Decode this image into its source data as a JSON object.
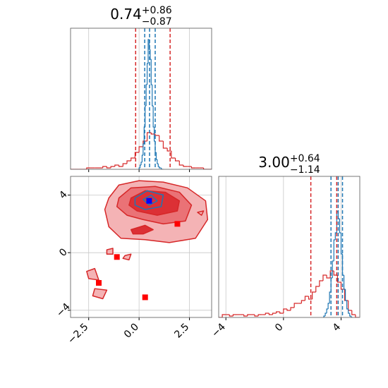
{
  "chart_data": [
    {
      "type": "histogram",
      "title": "0.74",
      "title_sup": "+0.86",
      "title_sub": "−0.87",
      "xlim": [
        -3.4,
        3.6
      ],
      "ylim": [
        0,
        1
      ],
      "xticks": [
        -2.5,
        0,
        2.5
      ],
      "grid": true,
      "series": [
        {
          "color": "#d62728",
          "bins": [
            -3.4,
            -3.2,
            -3.0,
            -2.8,
            -2.6,
            -2.4,
            -2.2,
            -2.0,
            -1.8,
            -1.6,
            -1.4,
            -1.2,
            -1.0,
            -0.8,
            -0.6,
            -0.4,
            -0.2,
            0.0,
            0.2,
            0.4,
            0.6,
            0.8,
            1.0,
            1.2,
            1.4,
            1.6,
            1.8,
            2.0,
            2.2,
            2.4,
            2.6,
            2.8,
            3.0,
            3.2,
            3.4,
            3.6
          ],
          "values": [
            0,
            0,
            0,
            0,
            0.01,
            0.01,
            0.01,
            0.01,
            0.02,
            0.01,
            0.02,
            0.03,
            0.02,
            0.04,
            0.06,
            0.08,
            0.12,
            0.16,
            0.2,
            0.26,
            0.25,
            0.24,
            0.2,
            0.15,
            0.13,
            0.08,
            0.06,
            0.03,
            0.02,
            0.02,
            0.01,
            0.01,
            0.01,
            0,
            0
          ]
        },
        {
          "color": "#1f77b4",
          "bins": [
            0.0,
            0.05,
            0.1,
            0.15,
            0.2,
            0.25,
            0.3,
            0.35,
            0.4,
            0.45,
            0.5,
            0.55,
            0.6,
            0.65,
            0.7,
            0.75,
            0.8,
            0.85,
            0.9,
            0.95,
            1.0,
            1.05,
            1.1,
            1.15,
            1.2
          ],
          "values": [
            0.01,
            0.03,
            0.05,
            0.1,
            0.18,
            0.3,
            0.45,
            0.6,
            0.75,
            0.92,
            0.85,
            0.78,
            0.6,
            0.45,
            0.3,
            0.2,
            0.12,
            0.07,
            0.04,
            0.02,
            0.01,
            0.01,
            0,
            0
          ]
        }
      ],
      "quantiles": [
        {
          "color": "#d62728",
          "values": [
            -0.17,
            1.54
          ]
        },
        {
          "color": "#1f77b4",
          "values": [
            0.28,
            0.52,
            0.8
          ]
        }
      ]
    },
    {
      "type": "contour",
      "xlim": [
        -3.4,
        3.6
      ],
      "ylim": [
        -4.5,
        5.3
      ],
      "xticks": [
        {
          "value": -2.5,
          "label": "−2.5"
        },
        {
          "value": 0,
          "label": "0.0"
        },
        {
          "value": 2.5,
          "label": "2.5"
        }
      ],
      "yticks": [
        {
          "value": -4,
          "label": "−4"
        },
        0,
        4
      ],
      "grid": true,
      "contours": [
        {
          "color": "#f4b3b5",
          "points": [
            [
              -1.5,
              3.8
            ],
            [
              -1.0,
              4.7
            ],
            [
              0,
              5.0
            ],
            [
              1.2,
              4.9
            ],
            [
              2.4,
              4.5
            ],
            [
              3.3,
              3.6
            ],
            [
              3.4,
              2.3
            ],
            [
              2.8,
              1.0
            ],
            [
              1.5,
              0.7
            ],
            [
              0.3,
              0.9
            ],
            [
              -0.9,
              1.0
            ],
            [
              -1.5,
              1.8
            ],
            [
              -1.7,
              3.0
            ]
          ]
        },
        {
          "color": "#ea7276",
          "points": [
            [
              -1.0,
              3.8
            ],
            [
              -0.4,
              4.5
            ],
            [
              0.8,
              4.6
            ],
            [
              2.0,
              4.2
            ],
            [
              2.6,
              3.3
            ],
            [
              2.3,
              2.2
            ],
            [
              1.2,
              2.0
            ],
            [
              0.2,
              2.3
            ],
            [
              -0.6,
              2.6
            ],
            [
              -1.1,
              3.2
            ]
          ]
        },
        {
          "color": "#dc3035",
          "points": [
            [
              -0.4,
              3.8
            ],
            [
              0.3,
              4.3
            ],
            [
              1.3,
              4.2
            ],
            [
              2.0,
              3.6
            ],
            [
              1.9,
              2.9
            ],
            [
              0.9,
              2.6
            ],
            [
              -0.1,
              2.9
            ],
            [
              -0.5,
              3.3
            ]
          ]
        },
        {
          "color": "#dc3035",
          "points": [
            [
              -0.4,
              1.6
            ],
            [
              0.3,
              1.9
            ],
            [
              0.7,
              1.6
            ],
            [
              0.2,
              1.3
            ],
            [
              -0.3,
              1.3
            ]
          ]
        },
        {
          "color": "#f4b3b5",
          "points": [
            [
              -2.6,
              -1.3
            ],
            [
              -2.2,
              -1.1
            ],
            [
              -2.0,
              -1.9
            ],
            [
              -2.5,
              -1.8
            ]
          ]
        },
        {
          "color": "#f4b3b5",
          "points": [
            [
              -2.2,
              -2.5
            ],
            [
              -1.6,
              -2.6
            ],
            [
              -1.8,
              -3.2
            ],
            [
              -2.3,
              -3.0
            ]
          ]
        },
        {
          "color": "#f4b3b5",
          "points": [
            [
              -1.6,
              0.2
            ],
            [
              -1.3,
              0.3
            ],
            [
              -1.3,
              -0.1
            ],
            [
              -1.6,
              -0.1
            ]
          ]
        },
        {
          "color": "#f4b3b5",
          "points": [
            [
              -0.7,
              -0.2
            ],
            [
              -0.4,
              -0.1
            ],
            [
              -0.5,
              -0.5
            ],
            [
              -0.8,
              -0.4
            ]
          ]
        },
        {
          "color": "#f4b3b5",
          "points": [
            [
              2.9,
              2.8
            ],
            [
              3.2,
              2.9
            ],
            [
              3.1,
              2.6
            ]
          ]
        },
        {
          "color": "none",
          "stroke": "#1f77b4",
          "points": [
            [
              -0.2,
              3.8
            ],
            [
              0.4,
              4.3
            ],
            [
              1.2,
              4.0
            ],
            [
              1.1,
              3.2
            ],
            [
              0.3,
              3.0
            ],
            [
              -0.2,
              3.3
            ]
          ]
        },
        {
          "color": "none",
          "stroke": "#1f77b4",
          "points": [
            [
              0.2,
              3.7
            ],
            [
              0.6,
              4.0
            ],
            [
              0.9,
              3.6
            ],
            [
              0.5,
              3.3
            ]
          ]
        }
      ],
      "markers": [
        {
          "color": "#ff0000",
          "x": [
            1.9,
            -1.1,
            -2.0,
            0.3
          ],
          "y": [
            2.0,
            -0.3,
            -2.1,
            -3.1
          ]
        },
        {
          "color": "#0000ff",
          "x": [
            0.5
          ],
          "y": [
            3.6
          ]
        }
      ]
    },
    {
      "type": "histogram",
      "title": "3.00",
      "title_sup": "+0.64",
      "title_sub": "−1.14",
      "xlim": [
        -4.5,
        5.3
      ],
      "ylim": [
        0,
        1
      ],
      "xticks": [
        {
          "value": -4,
          "label": "−4"
        },
        0,
        4
      ],
      "grid": true,
      "series": [
        {
          "color": "#d62728",
          "bins": [
            -4.5,
            -4.25,
            -4.0,
            -3.75,
            -3.5,
            -3.25,
            -3.0,
            -2.75,
            -2.5,
            -2.25,
            -2.0,
            -1.75,
            -1.5,
            -1.25,
            -1.0,
            -0.75,
            -0.5,
            -0.25,
            0.0,
            0.25,
            0.5,
            0.75,
            1.0,
            1.25,
            1.5,
            1.75,
            2.0,
            2.25,
            2.5,
            2.75,
            3.0,
            3.25,
            3.5,
            3.75,
            4.0,
            4.25,
            4.5,
            4.75,
            5.0,
            5.25
          ],
          "values": [
            0,
            0.02,
            0.02,
            0.01,
            0.02,
            0.02,
            0.02,
            0.01,
            0.02,
            0.02,
            0.01,
            0.02,
            0.02,
            0.03,
            0.02,
            0.03,
            0.04,
            0.03,
            0.06,
            0.05,
            0.07,
            0.1,
            0.1,
            0.12,
            0.15,
            0.13,
            0.18,
            0.22,
            0.26,
            0.3,
            0.28,
            0.33,
            0.3,
            0.25,
            0.2,
            0.12,
            0.05,
            0.02,
            0
          ]
        },
        {
          "color": "#1f77b4",
          "bins": [
            2.8,
            2.9,
            3.0,
            3.1,
            3.2,
            3.3,
            3.4,
            3.5,
            3.6,
            3.7,
            3.8,
            3.9,
            4.0,
            4.1,
            4.2,
            4.3,
            4.4,
            4.5,
            4.6,
            4.7,
            4.8
          ],
          "values": [
            0.01,
            0.03,
            0.06,
            0.1,
            0.18,
            0.28,
            0.4,
            0.55,
            0.6,
            0.75,
            0.7,
            0.6,
            0.45,
            0.3,
            0.2,
            0.12,
            0.06,
            0.03,
            0.01,
            0
          ]
        }
      ],
      "quantiles": [
        {
          "color": "#d62728",
          "values": [
            1.9,
            3.7
          ]
        },
        {
          "color": "#1f77b4",
          "values": [
            3.3,
            3.8,
            4.1
          ]
        }
      ]
    }
  ]
}
